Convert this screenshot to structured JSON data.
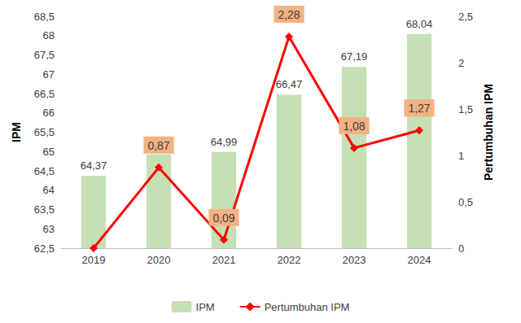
{
  "chart_data": {
    "type": "bar",
    "categories": [
      "2019",
      "2020",
      "2021",
      "2022",
      "2023",
      "2024"
    ],
    "series": [
      {
        "name": "IPM",
        "type": "bar",
        "color": "#c6e0b4",
        "values": [
          64.37,
          64.93,
          64.99,
          66.47,
          67.19,
          68.04
        ],
        "value_labels": [
          "64,37",
          null,
          "64,99",
          "66,47",
          "67,19",
          "68,04"
        ]
      },
      {
        "name": "Pertumbuhan IPM",
        "type": "line",
        "axis": "y2",
        "color": "#ff0000",
        "marker": "diamond",
        "line_style": "solid",
        "values": [
          0,
          0.87,
          0.09,
          2.28,
          1.08,
          1.27
        ],
        "value_labels": [
          null,
          "0,87",
          "0,09",
          "2,28",
          "1,08",
          "1,27"
        ]
      }
    ],
    "y_label": "IPM",
    "y2_label": "Pertumbuhan IPM",
    "ylim": [
      62.5,
      68.5
    ],
    "yticks": [
      {
        "value": 62.5,
        "label": "62,5"
      },
      63,
      {
        "value": 63.5,
        "label": "63,5"
      },
      64,
      {
        "value": 64.5,
        "label": "64,5"
      },
      65,
      {
        "value": 65.5,
        "label": "65,5"
      },
      66,
      {
        "value": 66.5,
        "label": "66,5"
      },
      67,
      {
        "value": 67.5,
        "label": "67,5"
      },
      68,
      {
        "value": 68.5,
        "label": "68,5"
      }
    ],
    "y2lim": [
      0,
      2.5
    ],
    "y2ticks": [
      0,
      {
        "value": 0.5,
        "label": "0,5"
      },
      1,
      {
        "value": 1.5,
        "label": "1,5"
      },
      2,
      {
        "value": 2.5,
        "label": "2,5"
      }
    ],
    "grid": false,
    "legend": "bottom",
    "data_labels": true
  }
}
